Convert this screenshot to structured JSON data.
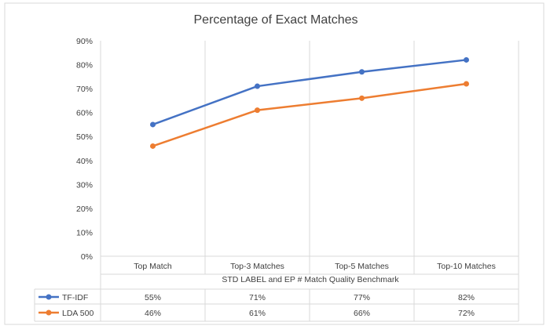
{
  "chart_data": {
    "type": "line",
    "title": "Percentage of Exact Matches",
    "categories": [
      "Top Match",
      "Top-3 Matches",
      "Top-5 Matches",
      "Top-10 Matches"
    ],
    "xlabel": "STD LABEL and EP # Match Quality Benchmark",
    "ylabel": "",
    "ylim": [
      0,
      90
    ],
    "yticks": [
      "0%",
      "10%",
      "20%",
      "30%",
      "40%",
      "50%",
      "60%",
      "70%",
      "80%",
      "90%"
    ],
    "grid": "vertical category separators",
    "legend": "data table below chart",
    "series": [
      {
        "name": "TF-IDF",
        "values": [
          55,
          71,
          77,
          82
        ],
        "labels": [
          "55%",
          "71%",
          "77%",
          "82%"
        ],
        "color": "#4472C4"
      },
      {
        "name": "LDA 500",
        "values": [
          46,
          61,
          66,
          72
        ],
        "labels": [
          "46%",
          "61%",
          "66%",
          "72%"
        ],
        "color": "#ED7D31"
      }
    ]
  }
}
